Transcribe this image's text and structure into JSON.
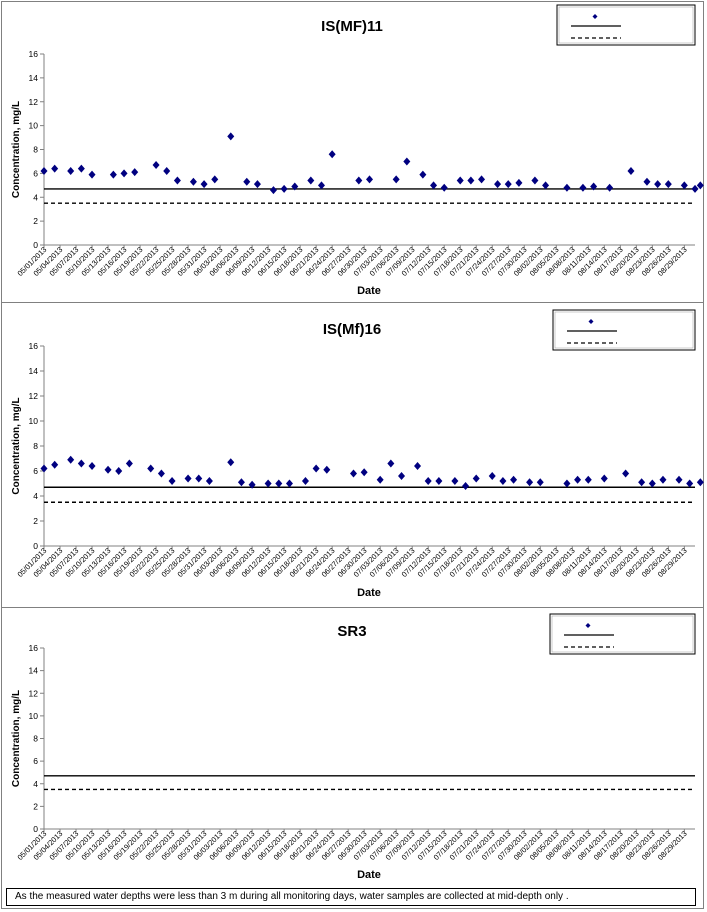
{
  "footnote": "As the measured water depths were less than 3 m during all monitoring days, water samples are collected  at mid-depth only .",
  "colors": {
    "marker": "#000080",
    "line": "#000000"
  },
  "chart_data": [
    {
      "type": "scatter",
      "title": "IS(MF)11",
      "xlabel": "Date",
      "ylabel": "Concentration, mg/L",
      "ylim": [
        0,
        16
      ],
      "yticks": [
        0,
        2,
        4,
        6,
        8,
        10,
        12,
        14,
        16
      ],
      "xlim": [
        "05/01/2013",
        "08/31/2013"
      ],
      "xticks": [
        "05/01/2013",
        "05/04/2013",
        "05/07/2013",
        "05/10/2013",
        "05/13/2013",
        "05/16/2013",
        "05/19/2013",
        "05/22/2013",
        "05/25/2013",
        "05/28/2013",
        "05/31/2013",
        "06/03/2013",
        "06/06/2013",
        "06/09/2013",
        "06/12/2013",
        "06/15/2013",
        "06/18/2013",
        "06/21/2013",
        "06/24/2013",
        "06/27/2013",
        "06/30/2013",
        "07/03/2013",
        "07/06/2013",
        "07/09/2013",
        "07/12/2013",
        "07/15/2013",
        "07/18/2013",
        "07/21/2013",
        "07/24/2013",
        "07/27/2013",
        "07/30/2013",
        "08/02/2013",
        "08/05/2013",
        "08/08/2013",
        "08/11/2013",
        "08/14/2013",
        "08/17/2013",
        "08/20/2013",
        "08/23/2013",
        "08/26/2013",
        "08/29/2013"
      ],
      "grid": false,
      "legend": "top-right",
      "reference_lines": [
        {
          "y": 4.7,
          "style": "solid"
        },
        {
          "y": 3.5,
          "style": "dashed"
        }
      ],
      "points": [
        [
          "05/01/2013",
          6.2
        ],
        [
          "05/03/2013",
          6.4
        ],
        [
          "05/06/2013",
          6.2
        ],
        [
          "05/08/2013",
          6.4
        ],
        [
          "05/10/2013",
          5.9
        ],
        [
          "05/14/2013",
          5.9
        ],
        [
          "05/16/2013",
          6.0
        ],
        [
          "05/18/2013",
          6.1
        ],
        [
          "05/22/2013",
          6.7
        ],
        [
          "05/24/2013",
          6.2
        ],
        [
          "05/26/2013",
          5.4
        ],
        [
          "05/29/2013",
          5.3
        ],
        [
          "05/31/2013",
          5.1
        ],
        [
          "06/02/2013",
          5.5
        ],
        [
          "06/05/2013",
          9.1
        ],
        [
          "06/08/2013",
          5.3
        ],
        [
          "06/10/2013",
          5.1
        ],
        [
          "06/13/2013",
          4.6
        ],
        [
          "06/15/2013",
          4.7
        ],
        [
          "06/17/2013",
          4.9
        ],
        [
          "06/20/2013",
          5.4
        ],
        [
          "06/22/2013",
          5.0
        ],
        [
          "06/24/2013",
          7.6
        ],
        [
          "06/29/2013",
          5.4
        ],
        [
          "07/01/2013",
          5.5
        ],
        [
          "07/06/2013",
          5.5
        ],
        [
          "07/08/2013",
          7.0
        ],
        [
          "07/11/2013",
          5.9
        ],
        [
          "07/13/2013",
          5.0
        ],
        [
          "07/15/2013",
          4.8
        ],
        [
          "07/18/2013",
          5.4
        ],
        [
          "07/20/2013",
          5.4
        ],
        [
          "07/22/2013",
          5.5
        ],
        [
          "07/25/2013",
          5.1
        ],
        [
          "07/27/2013",
          5.1
        ],
        [
          "07/29/2013",
          5.2
        ],
        [
          "08/01/2013",
          5.4
        ],
        [
          "08/03/2013",
          5.0
        ],
        [
          "08/07/2013",
          4.8
        ],
        [
          "08/10/2013",
          4.8
        ],
        [
          "08/12/2013",
          4.9
        ],
        [
          "08/15/2013",
          4.8
        ],
        [
          "08/19/2013",
          6.2
        ],
        [
          "08/22/2013",
          5.3
        ],
        [
          "08/24/2013",
          5.1
        ],
        [
          "08/26/2013",
          5.1
        ],
        [
          "08/29/2013",
          5.0
        ],
        [
          "08/31/2013",
          4.7
        ],
        [
          "09/01/2013",
          5.0
        ]
      ]
    },
    {
      "type": "scatter",
      "title": "IS(Mf)16",
      "xlabel": "Date",
      "ylabel": "Concentration, mg/L",
      "ylim": [
        0,
        16
      ],
      "yticks": [
        0,
        2,
        4,
        6,
        8,
        10,
        12,
        14,
        16
      ],
      "xlim": [
        "05/01/2013",
        "08/31/2013"
      ],
      "xticks": [
        "05/01/2013",
        "05/04/2013",
        "05/07/2013",
        "05/10/2013",
        "05/13/2013",
        "05/16/2013",
        "05/19/2013",
        "05/22/2013",
        "05/25/2013",
        "05/28/2013",
        "05/31/2013",
        "06/03/2013",
        "06/06/2013",
        "06/09/2013",
        "06/12/2013",
        "06/15/2013",
        "06/18/2013",
        "06/21/2013",
        "06/24/2013",
        "06/27/2013",
        "06/30/2013",
        "07/03/2013",
        "07/06/2013",
        "07/09/2013",
        "07/12/2013",
        "07/15/2013",
        "07/18/2013",
        "07/21/2013",
        "07/24/2013",
        "07/27/2013",
        "07/30/2013",
        "08/02/2013",
        "08/05/2013",
        "08/08/2013",
        "08/11/2013",
        "08/14/2013",
        "08/17/2013",
        "08/20/2013",
        "08/23/2013",
        "08/26/2013",
        "08/29/2013"
      ],
      "grid": false,
      "legend": "top-right",
      "reference_lines": [
        {
          "y": 4.7,
          "style": "solid"
        },
        {
          "y": 3.5,
          "style": "dashed"
        }
      ],
      "points": [
        [
          "05/01/2013",
          6.2
        ],
        [
          "05/03/2013",
          6.5
        ],
        [
          "05/06/2013",
          6.9
        ],
        [
          "05/08/2013",
          6.6
        ],
        [
          "05/10/2013",
          6.4
        ],
        [
          "05/13/2013",
          6.1
        ],
        [
          "05/15/2013",
          6.0
        ],
        [
          "05/17/2013",
          6.6
        ],
        [
          "05/21/2013",
          6.2
        ],
        [
          "05/23/2013",
          5.8
        ],
        [
          "05/25/2013",
          5.2
        ],
        [
          "05/28/2013",
          5.4
        ],
        [
          "05/30/2013",
          5.4
        ],
        [
          "06/01/2013",
          5.2
        ],
        [
          "06/05/2013",
          6.7
        ],
        [
          "06/07/2013",
          5.1
        ],
        [
          "06/09/2013",
          4.9
        ],
        [
          "06/12/2013",
          5.0
        ],
        [
          "06/14/2013",
          5.0
        ],
        [
          "06/16/2013",
          5.0
        ],
        [
          "06/19/2013",
          5.2
        ],
        [
          "06/21/2013",
          6.2
        ],
        [
          "06/23/2013",
          6.1
        ],
        [
          "06/28/2013",
          5.8
        ],
        [
          "06/30/2013",
          5.9
        ],
        [
          "07/03/2013",
          5.3
        ],
        [
          "07/05/2013",
          6.6
        ],
        [
          "07/07/2013",
          5.6
        ],
        [
          "07/10/2013",
          6.4
        ],
        [
          "07/12/2013",
          5.2
        ],
        [
          "07/14/2013",
          5.2
        ],
        [
          "07/17/2013",
          5.2
        ],
        [
          "07/19/2013",
          4.8
        ],
        [
          "07/21/2013",
          5.4
        ],
        [
          "07/24/2013",
          5.6
        ],
        [
          "07/26/2013",
          5.2
        ],
        [
          "07/28/2013",
          5.3
        ],
        [
          "07/31/2013",
          5.1
        ],
        [
          "08/02/2013",
          5.1
        ],
        [
          "08/07/2013",
          5.0
        ],
        [
          "08/09/2013",
          5.3
        ],
        [
          "08/11/2013",
          5.3
        ],
        [
          "08/14/2013",
          5.4
        ],
        [
          "08/18/2013",
          5.8
        ],
        [
          "08/21/2013",
          5.1
        ],
        [
          "08/23/2013",
          5.0
        ],
        [
          "08/25/2013",
          5.3
        ],
        [
          "08/28/2013",
          5.3
        ],
        [
          "08/30/2013",
          5.0
        ],
        [
          "09/01/2013",
          5.1
        ]
      ]
    },
    {
      "type": "scatter",
      "title": "SR3",
      "xlabel": "Date",
      "ylabel": "Concentration, mg/L",
      "ylim": [
        0,
        16
      ],
      "yticks": [
        0,
        2,
        4,
        6,
        8,
        10,
        12,
        14,
        16
      ],
      "xlim": [
        "05/01/2013",
        "08/31/2013"
      ],
      "xticks": [
        "05/01/2013",
        "05/04/2013",
        "05/07/2013",
        "05/10/2013",
        "05/13/2013",
        "05/16/2013",
        "05/19/2013",
        "05/22/2013",
        "05/25/2013",
        "05/28/2013",
        "05/31/2013",
        "06/03/2013",
        "06/06/2013",
        "06/09/2013",
        "06/12/2013",
        "06/15/2013",
        "06/18/2013",
        "06/21/2013",
        "06/24/2013",
        "06/27/2013",
        "06/30/2013",
        "07/03/2013",
        "07/06/2013",
        "07/09/2013",
        "07/12/2013",
        "07/15/2013",
        "07/18/2013",
        "07/21/2013",
        "07/24/2013",
        "07/27/2013",
        "07/30/2013",
        "08/02/2013",
        "08/05/2013",
        "08/08/2013",
        "08/11/2013",
        "08/14/2013",
        "08/17/2013",
        "08/20/2013",
        "08/23/2013",
        "08/26/2013",
        "08/29/2013"
      ],
      "grid": false,
      "legend": "top-right",
      "reference_lines": [
        {
          "y": 4.7,
          "style": "solid"
        },
        {
          "y": 3.5,
          "style": "dashed"
        }
      ],
      "points": []
    }
  ]
}
